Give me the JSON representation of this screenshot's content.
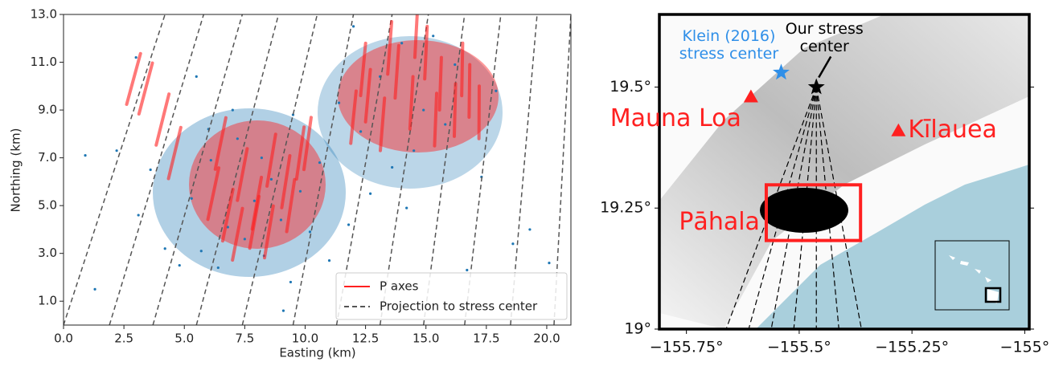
{
  "chart_data": [
    {
      "type": "scatter",
      "xlabel": "Easting (km)",
      "ylabel": "Northing (km)",
      "xlim": [
        0,
        21
      ],
      "ylim": [
        0,
        13
      ],
      "xticks": [
        {
          "value": 0,
          "label": "0.0"
        },
        2.5,
        {
          "value": 5,
          "label": "5.0"
        },
        7.5,
        {
          "value": 10,
          "label": "10.0"
        },
        12.5,
        {
          "value": 15,
          "label": "15.0"
        },
        17.5,
        {
          "value": 20,
          "label": "20.0"
        }
      ],
      "yticks": [
        {
          "value": 1,
          "label": "1.0"
        },
        {
          "value": 3,
          "label": "3.0"
        },
        {
          "value": 5,
          "label": "5.0"
        },
        {
          "value": 7,
          "label": "7.0"
        },
        {
          "value": 9,
          "label": "9.0"
        },
        {
          "value": 11,
          "label": "11.0"
        },
        {
          "value": 13,
          "label": "13.0"
        }
      ],
      "points": {
        "color": "#1f77b4",
        "x": [
          0.9,
          1.3,
          2.2,
          3.1,
          3.6,
          4.2,
          4.8,
          5.3,
          5.7,
          6.1,
          6.4,
          6.8,
          7.2,
          7.5,
          7.9,
          8.3,
          8.6,
          9.0,
          9.4,
          9.8,
          10.2,
          10.6,
          11.0,
          11.4,
          11.8,
          12.3,
          12.7,
          13.1,
          13.6,
          14.0,
          14.5,
          14.9,
          15.3,
          15.8,
          16.2,
          16.7,
          17.3,
          17.9,
          18.6,
          19.3,
          20.1,
          6.0,
          7.0,
          8.2,
          9.1,
          5.5,
          12.0,
          14.2,
          3.0,
          9.5
        ],
        "y": [
          7.1,
          1.5,
          7.3,
          4.6,
          6.5,
          3.2,
          2.5,
          5.3,
          3.1,
          6.9,
          2.4,
          4.1,
          7.8,
          3.6,
          5.2,
          2.9,
          6.1,
          4.4,
          1.8,
          5.6,
          3.9,
          6.8,
          2.7,
          9.3,
          4.2,
          8.1,
          5.5,
          10.4,
          6.6,
          11.8,
          7.3,
          9.0,
          12.1,
          8.4,
          10.9,
          2.3,
          6.2,
          9.8,
          3.4,
          4.0,
          2.6,
          8.2,
          9.0,
          7.0,
          0.6,
          10.4,
          12.5,
          4.9,
          11.2,
          8.8
        ]
      },
      "series": [
        {
          "name": "P axes",
          "color": "#ff2020",
          "x": [
            6.2,
            6.8,
            7.4,
            8.0,
            8.6,
            9.2,
            9.8,
            6.5,
            7.2,
            7.9,
            8.5,
            9.4,
            10.1,
            12.0,
            12.6,
            13.2,
            13.8,
            14.4,
            15.0,
            15.6,
            16.2,
            16.8,
            12.4,
            13.5,
            14.6,
            15.4,
            16.5,
            17.2,
            3.4,
            4.1,
            4.6,
            2.9
          ],
          "y": [
            5.5,
            4.6,
            6.3,
            5.1,
            6.9,
            6.0,
            7.2,
            7.6,
            3.8,
            4.3,
            3.9,
            5.0,
            7.6,
            8.7,
            9.6,
            8.4,
            10.6,
            9.3,
            11.4,
            10.1,
            9.0,
            9.8,
            10.7,
            11.6,
            12.3,
            8.6,
            10.7,
            8.9,
            9.9,
            8.6,
            7.2,
            10.3
          ]
        },
        {
          "name": "Projection to stress center",
          "color": "#555555",
          "x_bottom": [
            0.0,
            1.9,
            3.7,
            5.5,
            7.4,
            9.5,
            11.3,
            13.1,
            14.9,
            16.6,
            18.5,
            20.3
          ],
          "x_top": [
            4.2,
            5.8,
            7.4,
            8.9,
            10.5,
            12.0,
            13.6,
            15.1,
            16.6,
            18.1,
            19.6,
            21.0
          ]
        }
      ],
      "legend": "lower right"
    },
    {
      "type": "map",
      "xlim": [
        -155.81,
        -154.99
      ],
      "ylim": [
        19.0,
        19.65
      ],
      "xticks": [
        {
          "value": -155.75,
          "label": "−155.75°"
        },
        {
          "value": -155.5,
          "label": "−155.5°"
        },
        {
          "value": -155.25,
          "label": "−155.25°"
        },
        {
          "value": -155,
          "label": "−155°"
        }
      ],
      "yticks": [
        {
          "value": 19,
          "label": "19°"
        },
        {
          "value": 19.25,
          "label": "19.25°"
        },
        {
          "value": 19.5,
          "label": "19.5°"
        }
      ],
      "markers": [
        {
          "label": [
            "Mauna Loa"
          ],
          "symbol": "triangle",
          "color": "#ff2020",
          "lon": -155.607,
          "lat": 19.48
        },
        {
          "label": [
            "Kīlauea"
          ],
          "symbol": "triangle",
          "color": "#ff2020",
          "lon": -155.28,
          "lat": 19.41
        },
        {
          "label": [
            "Our stress",
            "center"
          ],
          "symbol": "star",
          "color": "#000000",
          "lon": -155.462,
          "lat": 19.5
        },
        {
          "label": [
            "Klein (2016)",
            "stress center"
          ],
          "symbol": "star",
          "color": "#2f8fe8",
          "lon": -155.54,
          "lat": 19.53
        }
      ],
      "box": {
        "label": "Pāhala",
        "color": "#ff2020",
        "lon": [
          -155.573,
          -155.364
        ],
        "lat": [
          19.183,
          19.298
        ]
      }
    }
  ]
}
